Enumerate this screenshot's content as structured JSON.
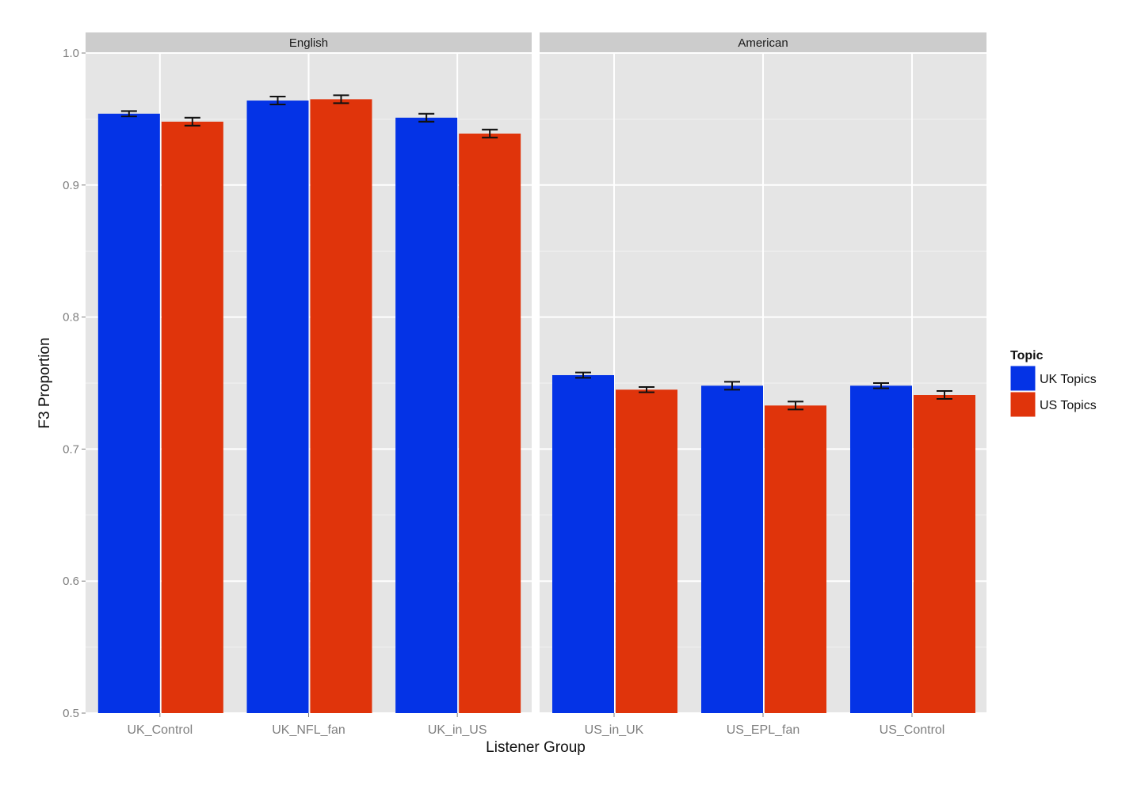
{
  "chart_data": {
    "type": "bar",
    "xlabel": "Listener Group",
    "ylabel": "F3 Proportion",
    "ylim": [
      0.5,
      1.0
    ],
    "yticks": [
      "0.5",
      "0.6",
      "0.7",
      "0.8",
      "0.9",
      "1.0"
    ],
    "grid": true,
    "legend": {
      "title": "Topic",
      "placement": "right"
    },
    "facets": [
      {
        "label": "English",
        "categories": [
          "UK_Control",
          "UK_NFL_fan",
          "UK_in_US"
        ],
        "series": [
          {
            "name": "UK Topics",
            "color": "#0433e6",
            "values": [
              0.954,
              0.964,
              0.951
            ],
            "errors": [
              0.002,
              0.003,
              0.003
            ]
          },
          {
            "name": "US Topics",
            "color": "#e0340b",
            "values": [
              0.948,
              0.965,
              0.939
            ],
            "errors": [
              0.003,
              0.003,
              0.003
            ]
          }
        ]
      },
      {
        "label": "American",
        "categories": [
          "US_in_UK",
          "US_EPL_fan",
          "US_Control"
        ],
        "series": [
          {
            "name": "UK Topics",
            "color": "#0433e6",
            "values": [
              0.756,
              0.748,
              0.748
            ],
            "errors": [
              0.002,
              0.003,
              0.002
            ]
          },
          {
            "name": "US Topics",
            "color": "#e0340b",
            "values": [
              0.745,
              0.733,
              0.741
            ],
            "errors": [
              0.002,
              0.003,
              0.003
            ]
          }
        ]
      }
    ]
  }
}
